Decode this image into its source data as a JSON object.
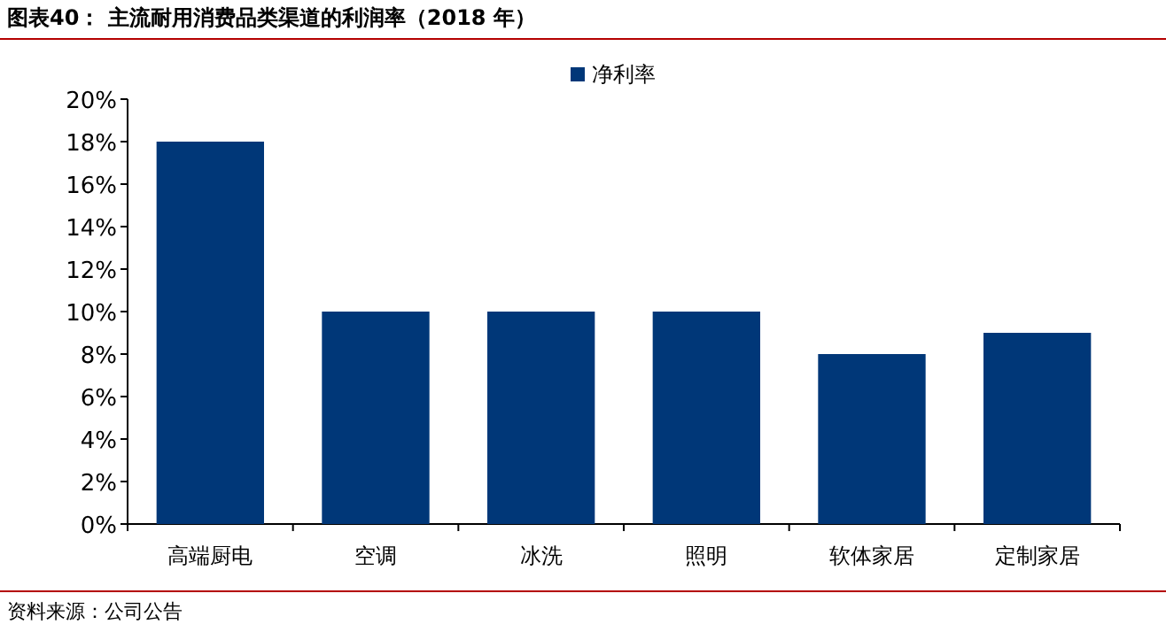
{
  "chart_data": {
    "type": "bar",
    "title": "图表40：  主流耐用消费品类渠道的利润率（2018 年）",
    "categories": [
      "高端厨电",
      "空调",
      "冰洗",
      "照明",
      "软体家居",
      "定制家居"
    ],
    "series": [
      {
        "name": "净利率",
        "color": "#003778",
        "values": [
          18,
          10,
          10,
          10,
          8,
          9
        ]
      }
    ],
    "ylim": [
      0,
      20
    ],
    "yticks": [
      {
        "value": 0,
        "label": "0%"
      },
      {
        "value": 2,
        "label": "2%"
      },
      {
        "value": 4,
        "label": "4%"
      },
      {
        "value": 6,
        "label": "6%"
      },
      {
        "value": 8,
        "label": "8%"
      },
      {
        "value": 10,
        "label": "10%"
      },
      {
        "value": 12,
        "label": "12%"
      },
      {
        "value": 14,
        "label": "14%"
      },
      {
        "value": 16,
        "label": "16%"
      },
      {
        "value": 18,
        "label": "18%"
      },
      {
        "value": 20,
        "label": "20%"
      }
    ],
    "legend": "top",
    "grid": false,
    "annotations": [
      "资料来源：公司公告"
    ]
  }
}
